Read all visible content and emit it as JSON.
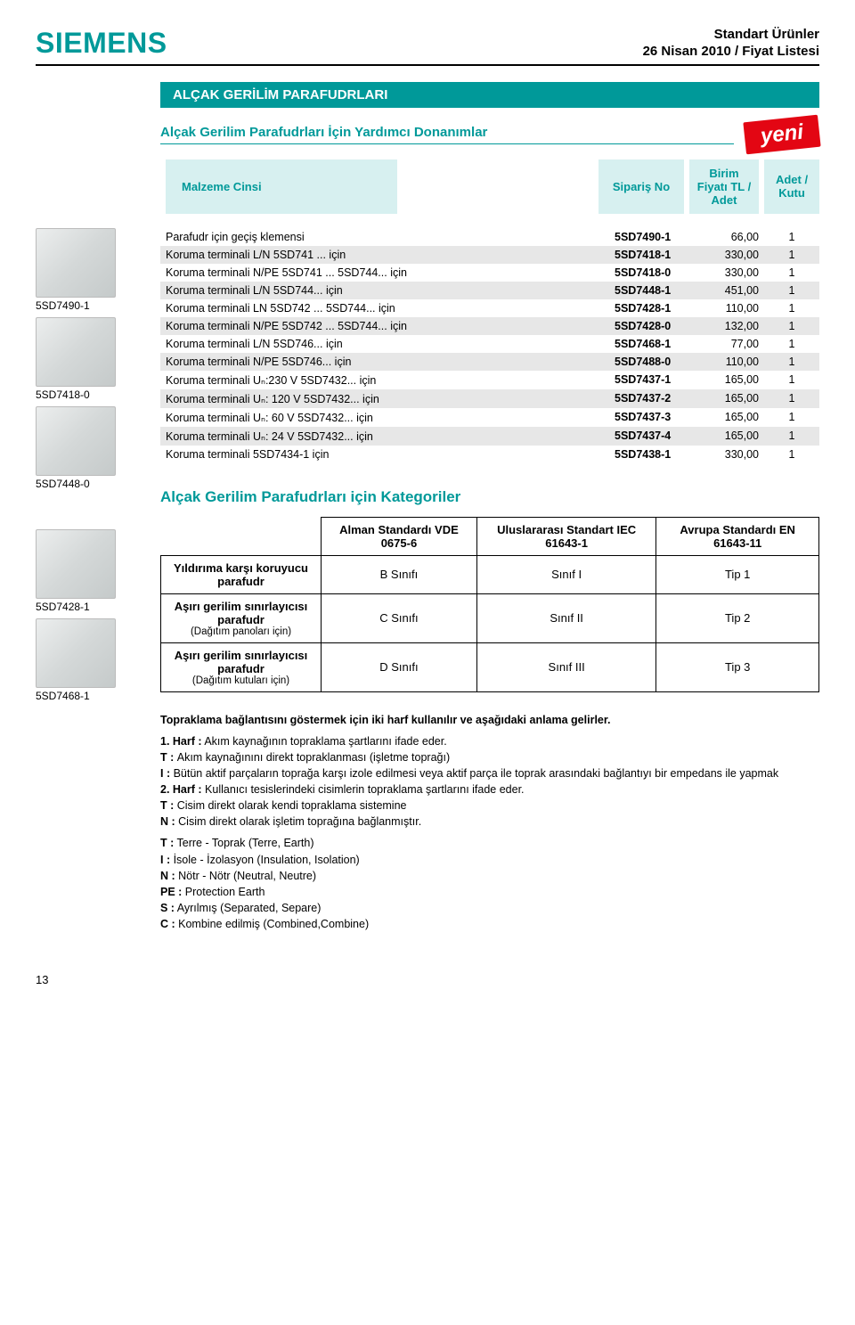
{
  "colors": {
    "teal": "#009999",
    "red": "#e30613",
    "headerCellBg": "#d7f0f0",
    "shadeRow": "#e7e7e7"
  },
  "header": {
    "brand": "SIEMENS",
    "line1": "Standart Ürünler",
    "line2": "26 Nisan 2010 / Fiyat Listesi"
  },
  "titleBox": "ALÇAK GERİLİM PARAFUDRLARI",
  "subtitle": "Alçak Gerilim Parafudrları İçin Yardımcı Donanımlar",
  "yeni": "yeni",
  "columnHeaders": {
    "desc": "Malzeme Cinsi",
    "code": "Sipariş No",
    "price": "Birim Fiyatı TL / Adet",
    "qty": "Adet / Kutu"
  },
  "thumbs": [
    {
      "label": "5SD7490-1"
    },
    {
      "label": "5SD7418-0"
    },
    {
      "label": "5SD7448-0"
    },
    {
      "label": "5SD7428-1"
    },
    {
      "label": "5SD7468-1"
    }
  ],
  "rows": [
    {
      "desc": "Parafudr için geçiş klemensi",
      "code": "5SD7490-1",
      "price": "66,00",
      "qty": "1",
      "shade": false
    },
    {
      "desc": "Koruma terminali L/N  5SD741 ... için",
      "code": "5SD7418-1",
      "price": "330,00",
      "qty": "1",
      "shade": true
    },
    {
      "desc": "Koruma terminali N/PE  5SD741 ...  5SD744... için",
      "code": "5SD7418-0",
      "price": "330,00",
      "qty": "1",
      "shade": false
    },
    {
      "desc": "Koruma terminali L/N 5SD744... için",
      "code": "5SD7448-1",
      "price": "451,00",
      "qty": "1",
      "shade": true
    },
    {
      "desc": "Koruma terminali LN  5SD742 ...  5SD744... için",
      "code": "5SD7428-1",
      "price": "110,00",
      "qty": "1",
      "shade": false
    },
    {
      "desc": "Koruma terminali N/PE  5SD742 ...  5SD744... için",
      "code": "5SD7428-0",
      "price": "132,00",
      "qty": "1",
      "shade": true
    },
    {
      "desc": "Koruma terminali L/N 5SD746... için",
      "code": "5SD7468-1",
      "price": "77,00",
      "qty": "1",
      "shade": false
    },
    {
      "desc": "Koruma terminali N/PE 5SD746... için",
      "code": "5SD7488-0",
      "price": "110,00",
      "qty": "1",
      "shade": true
    },
    {
      "desc": "Koruma terminali Uₙ:230 V 5SD7432... için",
      "code": "5SD7437-1",
      "price": "165,00",
      "qty": "1",
      "shade": false
    },
    {
      "desc": "Koruma terminali Uₙ: 120 V 5SD7432... için",
      "code": "5SD7437-2",
      "price": "165,00",
      "qty": "1",
      "shade": true
    },
    {
      "desc": "Koruma terminali Uₙ: 60 V 5SD7432... için",
      "code": "5SD7437-3",
      "price": "165,00",
      "qty": "1",
      "shade": false
    },
    {
      "desc": "Koruma terminali Uₙ: 24 V 5SD7432... için",
      "code": "5SD7437-4",
      "price": "165,00",
      "qty": "1",
      "shade": true
    },
    {
      "desc": "Koruma terminali 5SD7434-1 için",
      "code": "5SD7438-1",
      "price": "330,00",
      "qty": "1",
      "shade": false
    }
  ],
  "catTitle": "Alçak Gerilim Parafudrları için Kategoriler",
  "catTable": {
    "headers": [
      "",
      "Alman Standardı VDE 0675-6",
      "Uluslararası Standart IEC 61643-1",
      "Avrupa Standardı EN 61643-11"
    ],
    "rows": [
      {
        "hdr": "Yıldırıma karşı koruyucu parafudr",
        "sub": "",
        "cells": [
          "B Sınıfı",
          "Sınıf I",
          "Tip 1"
        ]
      },
      {
        "hdr": "Aşırı gerilim sınırlayıcısı parafudr",
        "sub": "(Dağıtım panoları için)",
        "cells": [
          "C Sınıfı",
          "Sınıf II",
          "Tip 2"
        ]
      },
      {
        "hdr": "Aşırı gerilim sınırlayıcısı parafudr",
        "sub": "(Dağıtım kutuları için)",
        "cells": [
          "D Sınıfı",
          "Sınıf III",
          "Tip 3"
        ]
      }
    ]
  },
  "notes": {
    "intro": "Topraklama bağlantısını göstermek için iki harf kullanılır ve aşağıdaki anlama gelirler.",
    "l1a": "1. Harf :",
    "l1b": "Akım kaynağının topraklama şartlarını ifade eder.",
    "t1": "T : Akım kaynağınını direkt topraklanması (işletme toprağı)",
    "i1": "I : Bütün aktif parçaların toprağa karşı izole edilmesi veya aktif parça ile toprak arasındaki bağlantıyı bir empedans ile yapmak",
    "l2a": "2. Harf :",
    "l2b": "Kullanıcı tesislerindeki cisimlerin topraklama şartlarını ifade eder.",
    "t2": "T : Cisim direkt olarak kendi topraklama sistemine",
    "n2": "N : Cisim direkt olarak işletim toprağına bağlanmıştır.",
    "legend": [
      "T :  Terre - Toprak (Terre, Earth)",
      "I :  İsole - İzolasyon (Insulation, Isolation)",
      "N : Nötr - Nötr (Neutral, Neutre)",
      "PE :  Protection Earth",
      "S :  Ayrılmış (Separated, Separe)",
      "C :  Kombine edilmiş (Combined,Combine)"
    ]
  },
  "pageNumber": "13"
}
